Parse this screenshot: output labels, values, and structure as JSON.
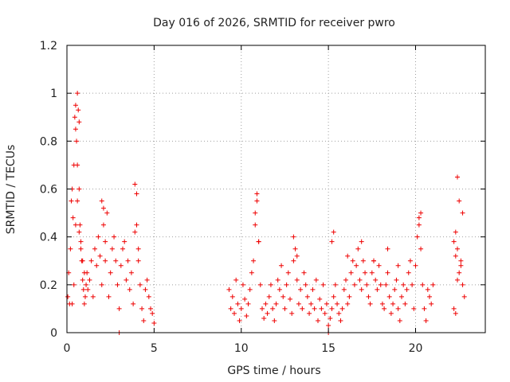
{
  "chart_data": {
    "type": "scatter",
    "title": "Day 016 of 2026, SRMTID for receiver pwro",
    "xlabel": "GPS time / hours",
    "ylabel": "SRMTID / TECUs",
    "xlim": [
      0,
      24
    ],
    "ylim": [
      0,
      1.2
    ],
    "xticks": [
      0,
      5,
      10,
      15,
      20
    ],
    "xtick_labels": [
      "0",
      "5",
      "10",
      "15",
      "20"
    ],
    "yticks": [
      0,
      0.2,
      0.4,
      0.6,
      0.8,
      1.0,
      1.2
    ],
    "ytick_labels": [
      "0",
      "0.2",
      "0.4",
      "0.6",
      "0.8",
      "1",
      "1.2"
    ],
    "grid": true,
    "marker": "+",
    "series": [
      {
        "name": "SRMTID",
        "color": "#ee0000",
        "x": [
          0.05,
          0.1,
          0.15,
          0.2,
          0.25,
          0.3,
          0.35,
          0.4,
          0.45,
          0.5,
          0.5,
          0.55,
          0.6,
          0.6,
          0.65,
          0.7,
          0.7,
          0.75,
          0.8,
          0.85,
          0.9,
          0.95,
          1.0,
          1.05,
          1.1,
          1.15,
          1.2,
          1.3,
          1.4,
          1.5,
          1.6,
          1.7,
          1.8,
          1.9,
          2.0,
          2.1,
          2.2,
          2.3,
          2.4,
          2.5,
          2.6,
          2.7,
          2.8,
          2.9,
          3.0,
          3.1,
          3.2,
          3.3,
          3.4,
          3.5,
          3.6,
          3.7,
          3.8,
          3.9,
          4.0,
          4.1,
          4.2,
          4.3,
          4.4,
          4.5,
          4.6,
          4.7,
          4.8,
          4.9,
          5.0,
          0.3,
          0.4,
          0.5,
          0.6,
          0.7,
          0.8,
          0.9,
          1.0,
          2.0,
          2.1,
          2.2,
          3.9,
          4.0,
          4.1,
          3.0,
          9.3,
          9.4,
          9.5,
          9.6,
          9.7,
          9.8,
          9.9,
          10.0,
          10.1,
          10.2,
          10.3,
          10.4,
          10.5,
          10.6,
          10.7,
          10.8,
          10.9,
          11.0,
          11.1,
          11.2,
          11.3,
          11.4,
          11.5,
          11.6,
          11.7,
          11.8,
          11.9,
          12.0,
          12.1,
          12.2,
          12.3,
          12.4,
          12.5,
          12.6,
          12.7,
          12.8,
          12.9,
          13.0,
          13.1,
          13.2,
          13.3,
          13.4,
          13.5,
          13.6,
          13.7,
          13.8,
          13.9,
          14.0,
          14.1,
          14.2,
          14.3,
          14.4,
          14.5,
          14.6,
          14.7,
          14.8,
          14.9,
          15.0,
          15.1,
          15.2,
          15.3,
          15.4,
          15.5,
          15.6,
          15.7,
          15.8,
          15.9,
          16.0,
          16.1,
          16.2,
          16.3,
          16.4,
          16.5,
          16.6,
          16.7,
          16.8,
          16.9,
          17.0,
          17.1,
          17.2,
          17.3,
          17.4,
          17.5,
          17.6,
          17.7,
          17.8,
          17.9,
          18.0,
          18.1,
          18.2,
          18.3,
          18.4,
          18.5,
          18.6,
          18.7,
          18.8,
          18.9,
          19.0,
          19.1,
          19.2,
          19.3,
          19.4,
          19.5,
          19.6,
          19.7,
          19.8,
          19.9,
          20.0,
          20.1,
          20.2,
          20.3,
          20.4,
          20.5,
          20.6,
          20.7,
          20.8,
          20.9,
          21.0,
          10.8,
          10.9,
          11.0,
          13.0,
          13.2,
          15.2,
          15.3,
          16.1,
          16.9,
          17.6,
          18.4,
          19.0,
          20.2,
          20.3,
          15.0,
          22.2,
          22.3,
          22.4,
          22.5,
          22.6,
          22.7,
          22.8,
          22.3,
          22.4,
          22.5,
          22.6,
          22.7,
          22.2,
          22.3,
          22.4
        ],
        "y": [
          0.15,
          0.25,
          0.12,
          0.35,
          0.55,
          0.6,
          0.48,
          0.7,
          0.9,
          0.95,
          0.85,
          0.8,
          0.7,
          1.0,
          0.93,
          0.88,
          0.6,
          0.45,
          0.38,
          0.3,
          0.22,
          0.18,
          0.12,
          0.15,
          0.2,
          0.25,
          0.18,
          0.22,
          0.3,
          0.15,
          0.35,
          0.28,
          0.4,
          0.32,
          0.2,
          0.45,
          0.38,
          0.5,
          0.15,
          0.25,
          0.35,
          0.4,
          0.3,
          0.2,
          0.1,
          0.28,
          0.35,
          0.38,
          0.22,
          0.3,
          0.18,
          0.25,
          0.12,
          0.42,
          0.45,
          0.3,
          0.2,
          0.1,
          0.05,
          0.18,
          0.22,
          0.15,
          0.1,
          0.08,
          0.04,
          0.12,
          0.2,
          0.45,
          0.55,
          0.42,
          0.35,
          0.3,
          0.25,
          0.55,
          0.52,
          0.3,
          0.62,
          0.58,
          0.35,
          0.0,
          0.18,
          0.1,
          0.15,
          0.08,
          0.22,
          0.12,
          0.05,
          0.1,
          0.2,
          0.14,
          0.07,
          0.12,
          0.18,
          0.25,
          0.3,
          0.45,
          0.55,
          0.38,
          0.2,
          0.1,
          0.06,
          0.12,
          0.08,
          0.15,
          0.2,
          0.1,
          0.05,
          0.12,
          0.22,
          0.18,
          0.28,
          0.15,
          0.1,
          0.2,
          0.25,
          0.14,
          0.08,
          0.3,
          0.35,
          0.22,
          0.12,
          0.18,
          0.1,
          0.25,
          0.2,
          0.15,
          0.08,
          0.12,
          0.18,
          0.1,
          0.22,
          0.05,
          0.14,
          0.1,
          0.2,
          0.08,
          0.12,
          0.03,
          0.06,
          0.1,
          0.15,
          0.2,
          0.12,
          0.08,
          0.05,
          0.1,
          0.18,
          0.22,
          0.12,
          0.15,
          0.25,
          0.3,
          0.2,
          0.28,
          0.35,
          0.22,
          0.18,
          0.3,
          0.25,
          0.2,
          0.15,
          0.12,
          0.25,
          0.3,
          0.22,
          0.18,
          0.28,
          0.2,
          0.12,
          0.1,
          0.2,
          0.25,
          0.15,
          0.08,
          0.12,
          0.18,
          0.22,
          0.1,
          0.05,
          0.15,
          0.2,
          0.12,
          0.18,
          0.25,
          0.3,
          0.2,
          0.1,
          0.28,
          0.4,
          0.48,
          0.35,
          0.2,
          0.1,
          0.05,
          0.18,
          0.15,
          0.12,
          0.2,
          0.5,
          0.58,
          0.38,
          0.4,
          0.32,
          0.38,
          0.42,
          0.32,
          0.38,
          0.3,
          0.35,
          0.28,
          0.45,
          0.5,
          0.0,
          0.1,
          0.08,
          0.35,
          0.25,
          0.3,
          0.2,
          0.15,
          0.42,
          0.65,
          0.55,
          0.28,
          0.5,
          0.38,
          0.32,
          0.22
        ]
      }
    ]
  }
}
